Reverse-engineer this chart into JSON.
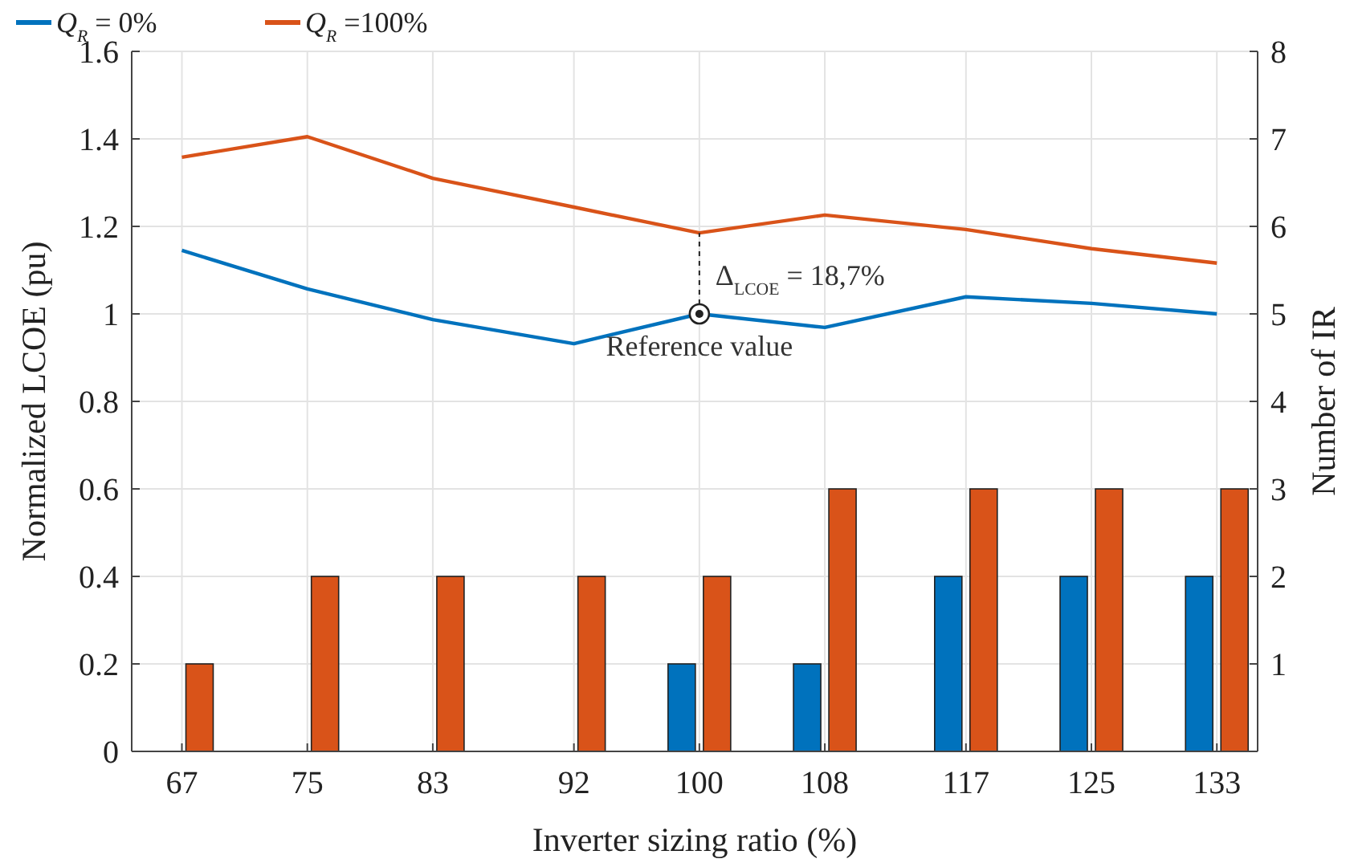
{
  "chart_data": {
    "type": "line",
    "xlabel": "Inverter sizing ratio (%)",
    "ylabel": "Normalized LCOE (pu)",
    "y2label": "Number of IR",
    "x": [
      67,
      75,
      83,
      92,
      100,
      108,
      117,
      125,
      133
    ],
    "xlim": [
      63.8,
      135.6
    ],
    "xticks": [
      67,
      75,
      83,
      92,
      100,
      108,
      117,
      125,
      133
    ],
    "ylim": [
      0,
      1.6
    ],
    "yticks": [
      0,
      0.2,
      0.4,
      0.6,
      0.8,
      1,
      1.2,
      1.4,
      1.6
    ],
    "y2lim": [
      0,
      8
    ],
    "y2ticks": [
      1,
      2,
      3,
      4,
      5,
      6,
      7,
      8
    ],
    "series": [
      {
        "name": "Q$_{R}$ = 0%",
        "color": "#0072bd",
        "values": [
          1.145,
          1.057,
          0.987,
          0.932,
          1.0,
          0.969,
          1.039,
          1.024,
          1.0
        ]
      },
      {
        "name": "Q$_{R}$ =100%",
        "color": "#d95319",
        "values": [
          1.358,
          1.405,
          1.31,
          1.244,
          1.185,
          1.226,
          1.193,
          1.149,
          1.116
        ]
      },
      {
        "type": "bar",
        "axis": "y2",
        "color": "#0072bd",
        "values": [
          0,
          0,
          0,
          0,
          1,
          1,
          2,
          2,
          2
        ]
      },
      {
        "type": "bar",
        "axis": "y2",
        "color": "#d95319",
        "values": [
          1,
          2,
          2,
          2,
          2,
          3,
          3,
          3,
          3
        ]
      }
    ],
    "annotations": [
      "Δ$_{LCOE}$ = 18,7%",
      {
        "text": "Reference value",
        "x": 100,
        "y": 1.0
      }
    ],
    "grid": true,
    "legend": "top left",
    "line_style": "solid",
    "marker": "none"
  }
}
